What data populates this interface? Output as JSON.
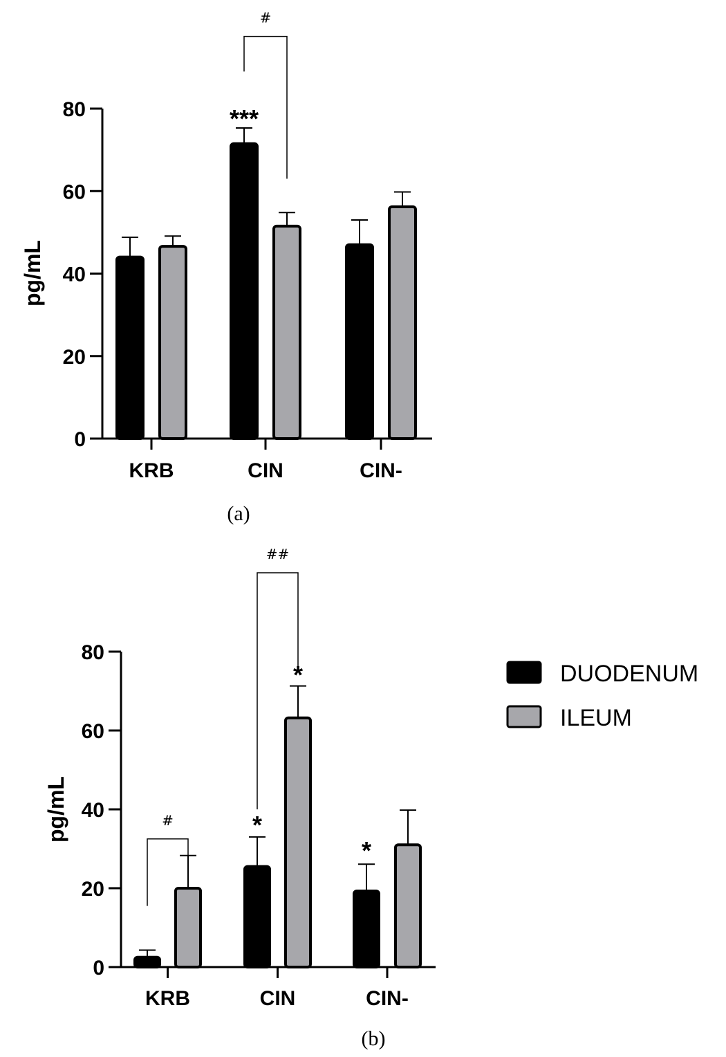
{
  "chart_data": [
    {
      "type": "bar",
      "panel_label": "(a)",
      "categories": [
        "KRB",
        "CIN",
        "CIN-"
      ],
      "series": [
        {
          "name": "DUODENUM",
          "color": "#000000",
          "values": [
            44,
            71.5,
            47
          ],
          "errors": [
            4.8,
            3.8,
            6
          ]
        },
        {
          "name": "ILEUM",
          "color": "#a7a7ab",
          "values": [
            46.6,
            51.5,
            56.2
          ],
          "errors": [
            2.5,
            3.3,
            3.6
          ]
        }
      ],
      "ylabel": "pg/mL",
      "yticks": [
        0,
        20,
        40,
        60,
        80
      ],
      "ylim": [
        0,
        80
      ],
      "annotations": [
        {
          "text": "***",
          "category": "CIN",
          "series": 0,
          "y": 77.5
        },
        {
          "text": "#",
          "from": {
            "category": "CIN",
            "series": 0
          },
          "to": {
            "category": "CIN",
            "series": 1
          },
          "left_bottom": 89,
          "right_bottom": 63,
          "top": 97.5
        }
      ],
      "legend": false
    },
    {
      "type": "bar",
      "panel_label": "(b)",
      "categories": [
        "KRB",
        "CIN",
        "CIN-"
      ],
      "series": [
        {
          "name": "DUODENUM",
          "color": "#000000",
          "values": [
            2.5,
            25.5,
            19.3
          ],
          "errors": [
            1.8,
            7.5,
            6.8
          ]
        },
        {
          "name": "ILEUM",
          "color": "#a7a7ab",
          "values": [
            20,
            63.2,
            31
          ],
          "errors": [
            8.3,
            8.1,
            8.8
          ]
        }
      ],
      "ylabel": "pg/mL",
      "yticks": [
        0,
        20,
        40,
        60,
        80
      ],
      "ylim": [
        0,
        80
      ],
      "annotations": [
        {
          "text": "*",
          "category": "CIN",
          "series": 0,
          "y": 36
        },
        {
          "text": "*",
          "category": "CIN",
          "series": 1,
          "y": 74
        },
        {
          "text": "*",
          "category": "CIN-",
          "series": 0,
          "y": 29.5
        },
        {
          "text": "#",
          "from": {
            "category": "KRB",
            "series": 0
          },
          "to": {
            "category": "KRB",
            "series": 1
          },
          "left_bottom": 15.5,
          "right_bottom": 22,
          "top": 32.5
        },
        {
          "text": "##",
          "from": {
            "category": "CIN",
            "series": 0
          },
          "to": {
            "category": "CIN",
            "series": 1
          },
          "left_bottom": 40,
          "right_bottom": 76,
          "top": 100
        }
      ],
      "legend": true
    }
  ],
  "legend": {
    "placement": "right",
    "items": [
      {
        "label": "DUODENUM",
        "color": "#000000"
      },
      {
        "label": "ILEUM",
        "color": "#a7a7ab"
      }
    ]
  }
}
